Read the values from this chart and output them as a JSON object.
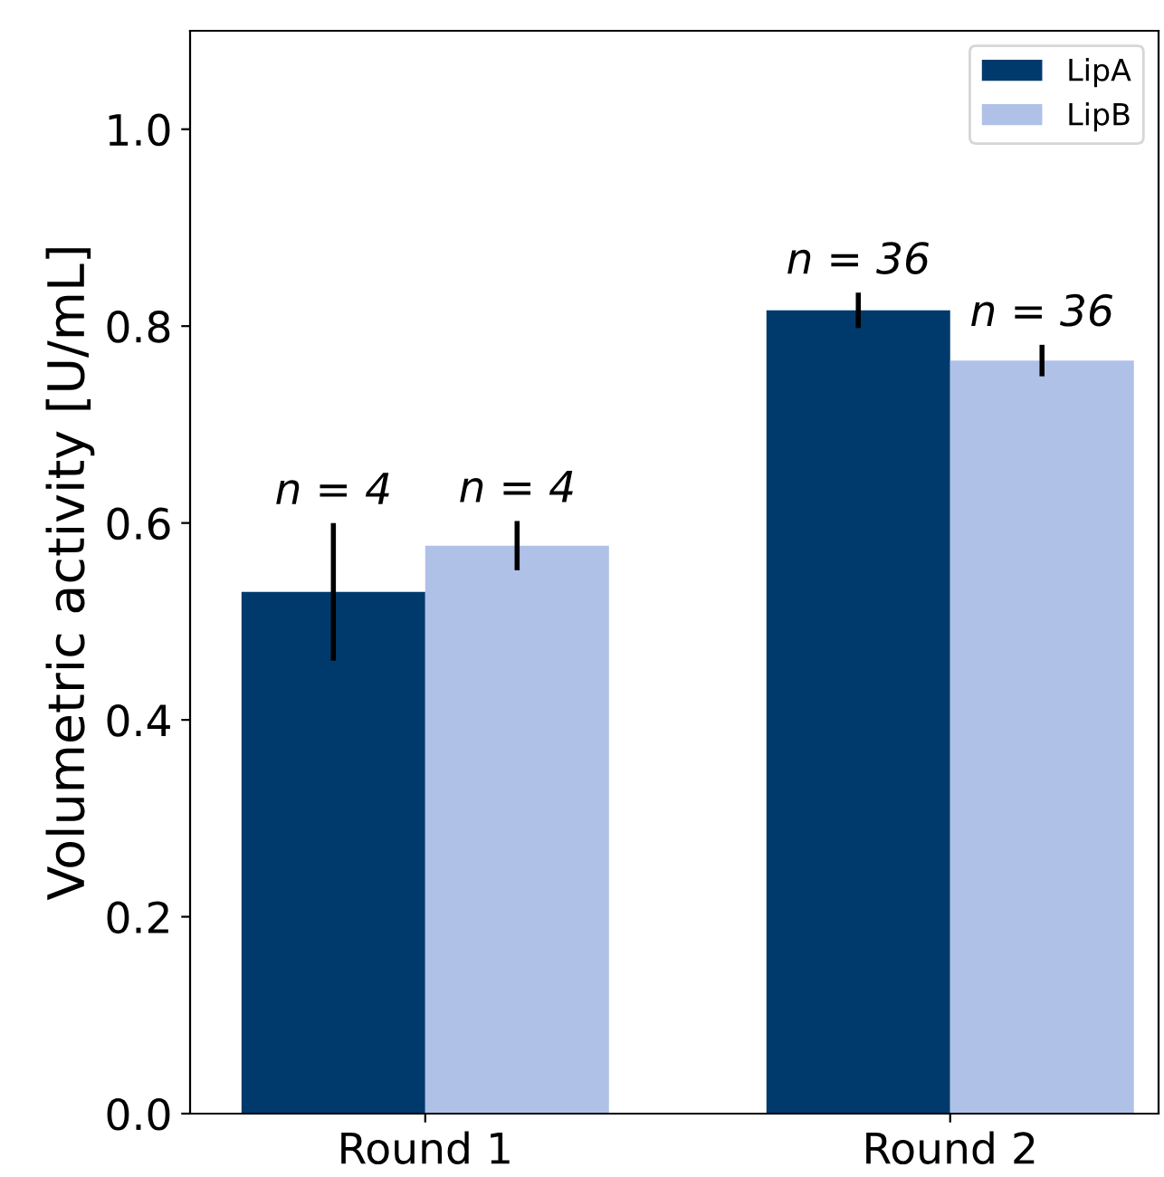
{
  "chart_data": {
    "type": "bar",
    "ylabel": "Volumetric activity [U/mL]",
    "categories": [
      "Round 1",
      "Round 2"
    ],
    "series": [
      {
        "name": "LipA",
        "color": "#003a6d",
        "values": [
          0.53,
          0.816
        ],
        "errors": [
          0.07,
          0.018
        ]
      },
      {
        "name": "LipB",
        "color": "#b0c1e8",
        "values": [
          0.577,
          0.765
        ],
        "errors": [
          0.025,
          0.016
        ]
      }
    ],
    "annotations": [
      "n = 4",
      "n = 4",
      "n = 36",
      "n = 36"
    ],
    "ylim": [
      0,
      1.1
    ],
    "yticks": [
      {
        "value": 0,
        "label": "0.0"
      },
      0.2,
      0.4,
      0.6,
      0.8,
      {
        "value": 1,
        "label": "1.0"
      }
    ],
    "legend": "top right"
  }
}
